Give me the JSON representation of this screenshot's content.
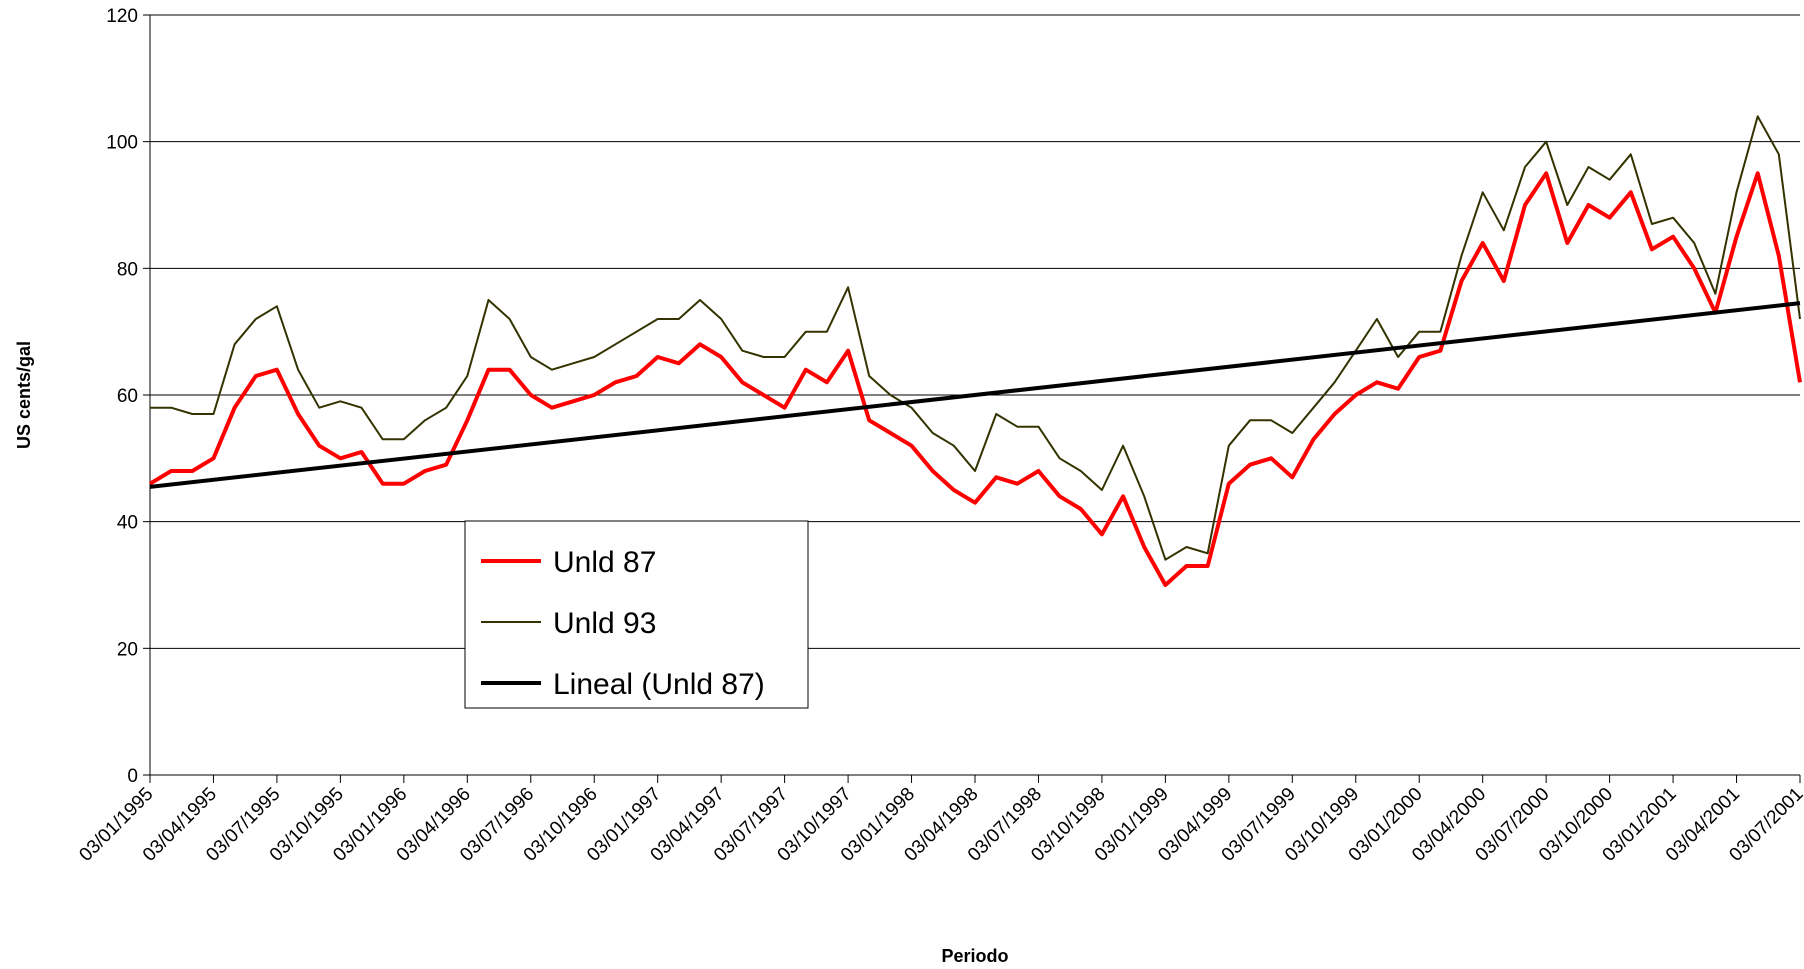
{
  "chart_data": {
    "type": "line",
    "y_label": "US cents/gal",
    "x_label": "Periodo",
    "categories": [
      "03/01/1995",
      null,
      null,
      "03/04/1995",
      null,
      null,
      "03/07/1995",
      null,
      null,
      "03/10/1995",
      null,
      null,
      "03/01/1996",
      null,
      null,
      "03/04/1996",
      null,
      null,
      "03/07/1996",
      null,
      null,
      "03/10/1996",
      null,
      null,
      "03/01/1997",
      null,
      null,
      "03/04/1997",
      null,
      null,
      "03/07/1997",
      null,
      null,
      "03/10/1997",
      null,
      null,
      "03/01/1998",
      null,
      null,
      "03/04/1998",
      null,
      null,
      "03/07/1998",
      null,
      null,
      "03/10/1998",
      null,
      null,
      "03/01/1999",
      null,
      null,
      "03/04/1999",
      null,
      null,
      "03/07/1999",
      null,
      null,
      "03/10/1999",
      null,
      null,
      "03/01/2000",
      null,
      null,
      "03/04/2000",
      null,
      null,
      "03/07/2000",
      null,
      null,
      "03/10/2000",
      null,
      null,
      "03/01/2001",
      null,
      null,
      "03/04/2001",
      null,
      null,
      "03/07/2001"
    ],
    "series": [
      {
        "name": "Unld 87",
        "color": "#ff0000",
        "width": 4,
        "values": [
          46,
          48,
          48,
          50,
          58,
          63,
          64,
          57,
          52,
          50,
          51,
          46,
          46,
          48,
          49,
          56,
          64,
          64,
          60,
          58,
          59,
          60,
          62,
          63,
          66,
          65,
          68,
          66,
          62,
          60,
          58,
          64,
          62,
          67,
          56,
          54,
          52,
          48,
          45,
          43,
          47,
          46,
          48,
          44,
          42,
          38,
          44,
          36,
          30,
          33,
          33,
          46,
          49,
          50,
          47,
          53,
          57,
          60,
          62,
          61,
          66,
          67,
          78,
          84,
          78,
          90,
          95,
          84,
          90,
          88,
          92,
          83,
          85,
          80,
          73,
          85,
          95,
          82,
          62
        ]
      },
      {
        "name": "Unld 93",
        "color": "#333300",
        "width": 2,
        "values": [
          58,
          58,
          57,
          57,
          68,
          72,
          74,
          64,
          58,
          59,
          58,
          53,
          53,
          56,
          58,
          63,
          75,
          72,
          66,
          64,
          65,
          66,
          68,
          70,
          72,
          72,
          75,
          72,
          67,
          66,
          66,
          70,
          70,
          77,
          63,
          60,
          58,
          54,
          52,
          48,
          57,
          55,
          55,
          50,
          48,
          45,
          52,
          44,
          34,
          36,
          35,
          52,
          56,
          56,
          54,
          58,
          62,
          67,
          72,
          66,
          70,
          70,
          82,
          92,
          86,
          96,
          100,
          90,
          96,
          94,
          98,
          87,
          88,
          84,
          76,
          92,
          104,
          98,
          72
        ]
      }
    ],
    "trendline": {
      "name": "Lineal (Unld 87)",
      "color": "#000000",
      "width": 4,
      "start": 45.5,
      "end": 74.5
    },
    "ylim": [
      0,
      120
    ],
    "yticks": [
      0,
      20,
      40,
      60,
      80,
      100,
      120
    ],
    "grid": true
  }
}
